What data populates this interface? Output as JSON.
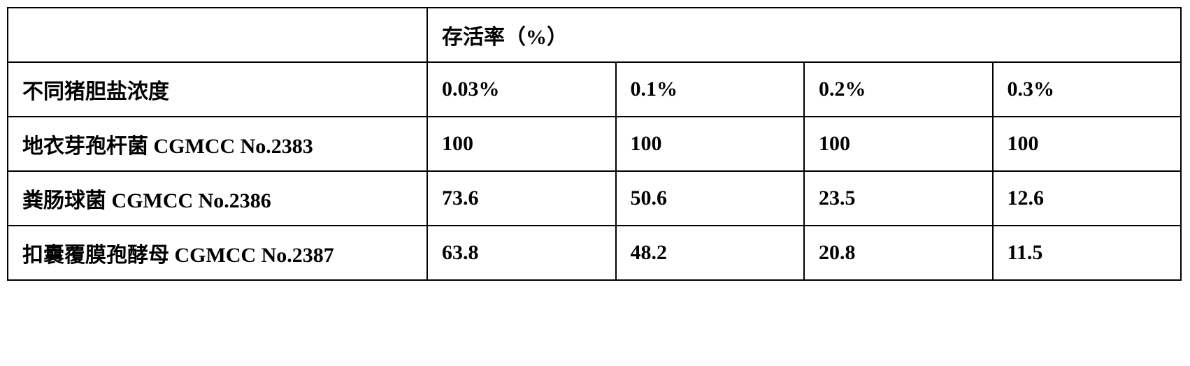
{
  "table": {
    "header_blank": "",
    "header_title": "存活率（%）",
    "row_label_header": "不同猪胆盐浓度",
    "concentrations": [
      "0.03%",
      "0.1%",
      "0.2%",
      "0.3%"
    ],
    "rows": [
      {
        "label": "地衣芽孢杆菌 CGMCC No.2383",
        "values": [
          "100",
          "100",
          "100",
          "100"
        ]
      },
      {
        "label": "粪肠球菌 CGMCC No.2386",
        "values": [
          "73.6",
          "50.6",
          "23.5",
          "12.6"
        ]
      },
      {
        "label": "扣囊覆膜孢酵母 CGMCC No.2387",
        "values": [
          "63.8",
          "48.2",
          "20.8",
          "11.5"
        ]
      }
    ],
    "border_color": "#000000",
    "background_color": "#ffffff",
    "text_color": "#000000",
    "font_size": 30
  }
}
